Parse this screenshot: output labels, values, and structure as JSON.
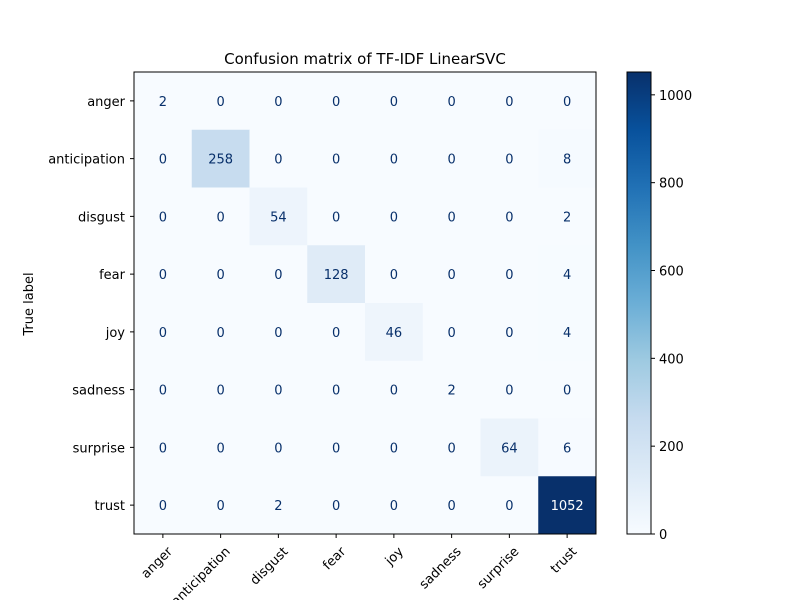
{
  "chart_data": {
    "type": "heatmap",
    "title": "Confusion matrix of TF-IDF LinearSVC",
    "ylabel": "True label",
    "xlabel": "",
    "labels": [
      "anger",
      "anticipation",
      "disgust",
      "fear",
      "joy",
      "sadness",
      "surprise",
      "trust"
    ],
    "matrix": [
      [
        2,
        0,
        0,
        0,
        0,
        0,
        0,
        0
      ],
      [
        0,
        258,
        0,
        0,
        0,
        0,
        0,
        8
      ],
      [
        0,
        0,
        54,
        0,
        0,
        0,
        0,
        2
      ],
      [
        0,
        0,
        0,
        128,
        0,
        0,
        0,
        4
      ],
      [
        0,
        0,
        0,
        0,
        46,
        0,
        0,
        4
      ],
      [
        0,
        0,
        0,
        0,
        0,
        2,
        0,
        0
      ],
      [
        0,
        0,
        0,
        0,
        0,
        0,
        64,
        6
      ],
      [
        0,
        0,
        2,
        0,
        0,
        0,
        0,
        1052
      ]
    ],
    "colormap": "Blues",
    "vmin": 0,
    "vmax": 1052,
    "colorbar_ticks": [
      0,
      200,
      400,
      600,
      800,
      1000
    ]
  }
}
